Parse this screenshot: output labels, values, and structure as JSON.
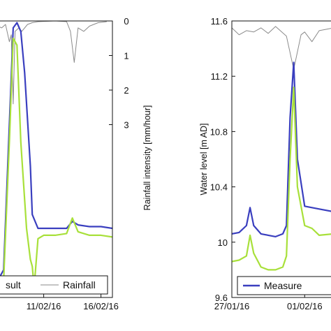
{
  "chart_data": [
    {
      "type": "line",
      "xlabel": "",
      "x_tick_labels": [
        "11/02/16",
        "16/02/16"
      ],
      "x_tick_dates": [
        "2016-02-11",
        "2016-02-16"
      ],
      "xlim": [
        "2016-02-07",
        "2016-02-17"
      ],
      "ylabel": "Rainfall intensity [mm/hour]",
      "y_axis_side": "right",
      "y_inverted": true,
      "ylim": [
        0,
        8
      ],
      "y_ticks": [
        0,
        1,
        2,
        3
      ],
      "legend": {
        "placement": "bottom",
        "items": [
          {
            "label": "sult",
            "color": "#3a3fbf"
          },
          {
            "label": "Rainfall",
            "color": "#8a8a8a"
          }
        ]
      },
      "series": [
        {
          "name": "Rainfall",
          "color": "#8a8a8a",
          "x": [
            "2016-02-07T00:00",
            "2016-02-07T08:00",
            "2016-02-07T16:00",
            "2016-02-08T00:00",
            "2016-02-08T04:00",
            "2016-02-08T08:00",
            "2016-02-08T12:00",
            "2016-02-08T20:00",
            "2016-02-09T02:00",
            "2016-02-09T14:00",
            "2016-02-10T00:00",
            "2016-02-10T12:00",
            "2016-02-12T00:00",
            "2016-02-13T00:00",
            "2016-02-13T08:00",
            "2016-02-13T16:00",
            "2016-02-14T00:00",
            "2016-02-14T12:00",
            "2016-02-15T00:00",
            "2016-02-15T18:00",
            "2016-02-16T12:00"
          ],
          "values": [
            0.15,
            0.2,
            0.1,
            0.6,
            0.4,
            2.4,
            0.3,
            0.2,
            0.3,
            0.1,
            0.05,
            0.02,
            0.0,
            0.02,
            0.3,
            1.2,
            0.2,
            0.3,
            0.15,
            0.05,
            0.02
          ]
        },
        {
          "color": "#3a3fbf",
          "x": [
            "2016-02-07T00:00",
            "2016-02-07T12:00",
            "2016-02-08T00:00",
            "2016-02-08T08:00",
            "2016-02-08T16:00",
            "2016-02-09T00:00",
            "2016-02-09T08:00",
            "2016-02-09T20:00",
            "2016-02-10T00:00",
            "2016-02-10T12:00",
            "2016-02-11T00:00",
            "2016-02-12T00:00",
            "2016-02-13T00:00",
            "2016-02-13T12:00",
            "2016-02-14T00:00",
            "2016-02-15T00:00",
            "2016-02-16T00:00",
            "2016-02-17T00:00"
          ],
          "values": [
            7.5,
            7.2,
            3.0,
            0.2,
            0.05,
            0.3,
            1.5,
            4.2,
            5.6,
            6.0,
            6.0,
            6.0,
            6.0,
            5.8,
            5.9,
            5.95,
            5.95,
            6.0
          ]
        },
        {
          "color": "#a8e03a",
          "x": [
            "2016-02-07T00:00",
            "2016-02-07T12:00",
            "2016-02-08T00:00",
            "2016-02-08T08:00",
            "2016-02-08T16:00",
            "2016-02-09T00:00",
            "2016-02-09T12:00",
            "2016-02-09T20:00",
            "2016-02-10T00:00",
            "2016-02-10T04:00",
            "2016-02-10T12:00",
            "2016-02-11T00:00",
            "2016-02-12T00:00",
            "2016-02-13T00:00",
            "2016-02-13T12:00",
            "2016-02-14T00:00",
            "2016-02-15T00:00",
            "2016-02-16T00:00",
            "2016-02-17T00:00"
          ],
          "values": [
            7.8,
            7.5,
            3.5,
            0.5,
            0.7,
            3.5,
            6.0,
            6.9,
            7.1,
            7.7,
            6.3,
            6.2,
            6.2,
            6.15,
            5.7,
            6.1,
            6.2,
            6.2,
            6.25
          ]
        }
      ]
    },
    {
      "type": "line",
      "xlabel": "",
      "x_tick_labels": [
        "27/01/16",
        "01/02/16"
      ],
      "x_tick_dates": [
        "2016-01-27",
        "2016-02-01"
      ],
      "xlim": [
        "2016-01-27",
        "2016-02-03"
      ],
      "ylabel": "Water level [m AD]",
      "ylim": [
        9.6,
        11.6
      ],
      "y_ticks": [
        9.6,
        10,
        10.4,
        10.8,
        11.2,
        11.6
      ],
      "legend": {
        "placement": "bottom",
        "items": [
          {
            "label": "Measure",
            "color": "#3a3fbf"
          }
        ]
      },
      "series": [
        {
          "color": "#8a8a8a",
          "x": [
            "2016-01-27T00:00",
            "2016-01-27T12:00",
            "2016-01-28T00:00",
            "2016-01-28T12:00",
            "2016-01-29T00:00",
            "2016-01-29T12:00",
            "2016-01-30T00:00",
            "2016-01-30T18:00",
            "2016-01-31T06:00",
            "2016-01-31T18:00",
            "2016-02-01T00:00",
            "2016-02-01T12:00",
            "2016-02-02T00:00",
            "2016-02-02T12:00",
            "2016-02-03T00:00"
          ],
          "values": [
            11.55,
            11.5,
            11.53,
            11.52,
            11.55,
            11.51,
            11.56,
            11.49,
            11.25,
            11.5,
            11.52,
            11.45,
            11.53,
            11.54,
            11.55
          ]
        },
        {
          "name": "Measure",
          "color": "#3a3fbf",
          "x": [
            "2016-01-27T00:00",
            "2016-01-27T12:00",
            "2016-01-28T00:00",
            "2016-01-28T06:00",
            "2016-01-28T12:00",
            "2016-01-29T00:00",
            "2016-01-29T12:00",
            "2016-01-30T00:00",
            "2016-01-30T12:00",
            "2016-01-30T18:00",
            "2016-01-31T00:00",
            "2016-01-31T06:00",
            "2016-01-31T12:00",
            "2016-02-01T00:00",
            "2016-02-01T12:00",
            "2016-02-02T00:00",
            "2016-02-03T00:00"
          ],
          "values": [
            10.06,
            10.07,
            10.12,
            10.25,
            10.12,
            10.06,
            10.05,
            10.04,
            10.06,
            10.12,
            10.9,
            11.3,
            10.6,
            10.26,
            10.25,
            10.24,
            10.22
          ]
        },
        {
          "color": "#a8e03a",
          "x": [
            "2016-01-27T00:00",
            "2016-01-27T12:00",
            "2016-01-28T00:00",
            "2016-01-28T06:00",
            "2016-01-28T12:00",
            "2016-01-29T00:00",
            "2016-01-29T12:00",
            "2016-01-30T00:00",
            "2016-01-30T12:00",
            "2016-01-30T18:00",
            "2016-01-31T00:00",
            "2016-01-31T06:00",
            "2016-01-31T12:00",
            "2016-02-01T00:00",
            "2016-02-01T12:00",
            "2016-02-02T00:00",
            "2016-02-03T00:00"
          ],
          "values": [
            9.86,
            9.87,
            9.9,
            10.05,
            9.92,
            9.82,
            9.8,
            9.8,
            9.82,
            9.9,
            10.6,
            11.12,
            10.4,
            10.12,
            10.1,
            10.05,
            10.06
          ]
        }
      ]
    }
  ]
}
